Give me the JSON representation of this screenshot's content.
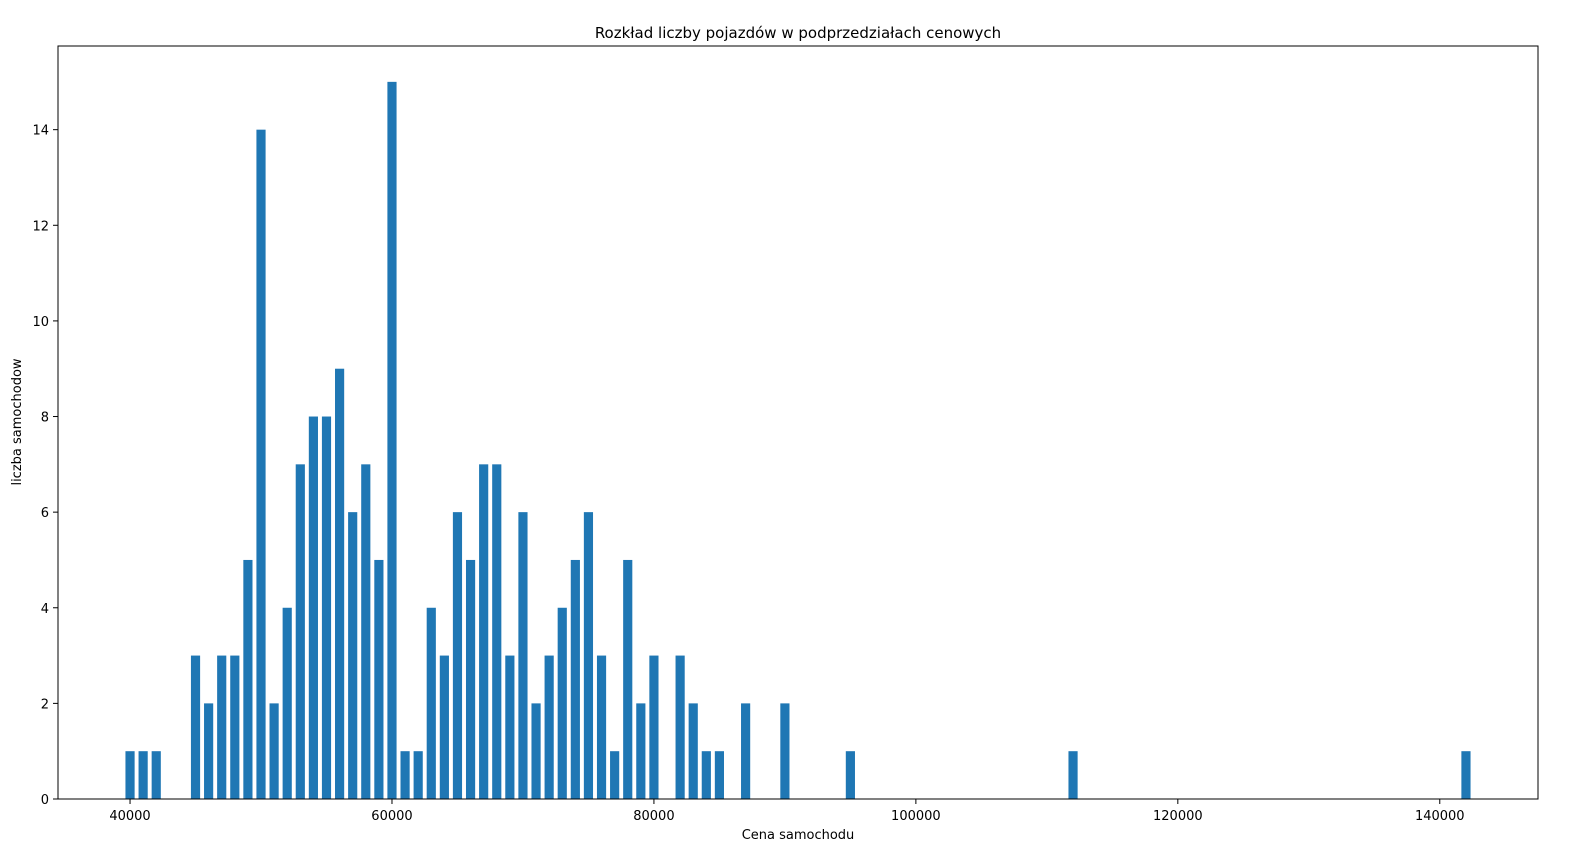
{
  "chart_data": {
    "type": "bar",
    "title": "Rozkład liczby pojazdów w podprzedziałach cenowych",
    "xlabel": "Cena samochodu",
    "ylabel": "liczba samochodow",
    "xlim": [
      34500,
      147500
    ],
    "ylim": [
      0,
      15.75
    ],
    "bar_width": 700,
    "color": "#1f77b4",
    "grid": false,
    "xticks": [
      40000,
      60000,
      80000,
      100000,
      120000,
      140000
    ],
    "yticks": [
      0,
      2,
      4,
      6,
      8,
      10,
      12,
      14
    ],
    "x": [
      40000,
      41000,
      42000,
      45000,
      46000,
      47000,
      48000,
      49000,
      50000,
      51000,
      52000,
      53000,
      54000,
      55000,
      56000,
      57000,
      58000,
      59000,
      60000,
      61000,
      62000,
      63000,
      64000,
      65000,
      66000,
      67000,
      68000,
      69000,
      70000,
      71000,
      72000,
      73000,
      74000,
      75000,
      76000,
      77000,
      78000,
      79000,
      80000,
      82000,
      83000,
      84000,
      85000,
      87000,
      90000,
      95000,
      112000,
      142000
    ],
    "values": [
      1,
      1,
      1,
      3,
      2,
      3,
      3,
      5,
      14,
      2,
      4,
      7,
      8,
      8,
      9,
      6,
      7,
      5,
      15,
      1,
      1,
      4,
      3,
      6,
      5,
      7,
      7,
      3,
      6,
      2,
      3,
      4,
      5,
      6,
      3,
      1,
      5,
      2,
      3,
      3,
      2,
      1,
      1,
      2,
      2,
      1,
      1,
      1
    ]
  }
}
